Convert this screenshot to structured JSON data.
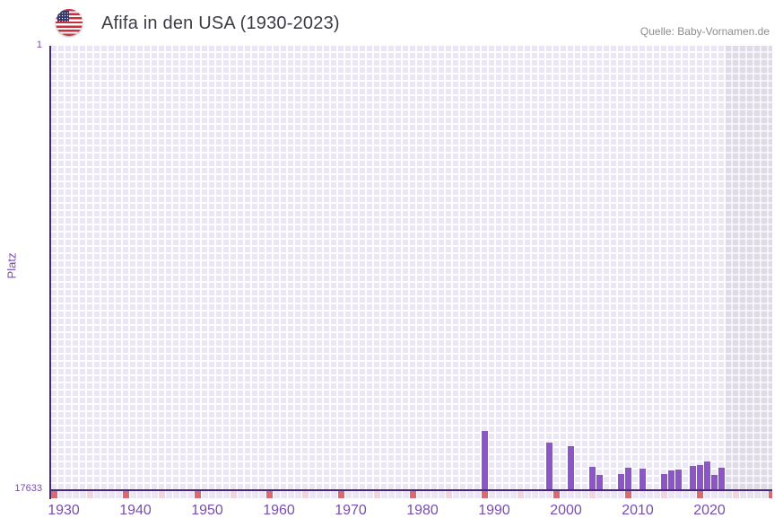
{
  "header": {
    "flag_icon": "us-flag-icon",
    "title": "Afifa in den USA (1930-2023)",
    "source": "Quelle: Baby-Vornamen.de"
  },
  "chart_data": {
    "type": "bar",
    "title": "Afifa in den USA (1930-2023)",
    "ylabel": "Platz",
    "y_axis": {
      "top_label": "1",
      "bottom_label": "17633",
      "min": 1,
      "max": 17633,
      "inverted": true
    },
    "x_axis": {
      "start_year": 1930,
      "end_year": 2023,
      "extended_end": 2030,
      "tick_years": [
        1930,
        1940,
        1950,
        1960,
        1970,
        1980,
        1990,
        2000,
        2010,
        2020
      ]
    },
    "bars": [
      {
        "year": 1990,
        "platz": 15309
      },
      {
        "year": 1999,
        "platz": 15763
      },
      {
        "year": 2002,
        "platz": 15906
      },
      {
        "year": 2005,
        "platz": 16739
      },
      {
        "year": 2006,
        "platz": 17072
      },
      {
        "year": 2009,
        "platz": 17036
      },
      {
        "year": 2010,
        "platz": 16764
      },
      {
        "year": 2012,
        "platz": 16793
      },
      {
        "year": 2015,
        "platz": 17036
      },
      {
        "year": 2016,
        "platz": 16893
      },
      {
        "year": 2017,
        "platz": 16857
      },
      {
        "year": 2019,
        "platz": 16703
      },
      {
        "year": 2020,
        "platz": 16678
      },
      {
        "year": 2021,
        "platz": 16535
      },
      {
        "year": 2022,
        "platz": 17072
      },
      {
        "year": 2023,
        "platz": 16775
      }
    ],
    "grid": true,
    "legend": null,
    "colors": {
      "bar": "#8c55c8",
      "axis": "#4a2878",
      "grid_cell": "#ebe6f5",
      "grid_future": "#dfdbe8",
      "tick_decade": "#d96b70",
      "tick_half_decade": "#f2d4de",
      "label_purple": "#7a4cb0",
      "title_text": "#3b3b44",
      "source_text": "#8d8d8d"
    }
  }
}
